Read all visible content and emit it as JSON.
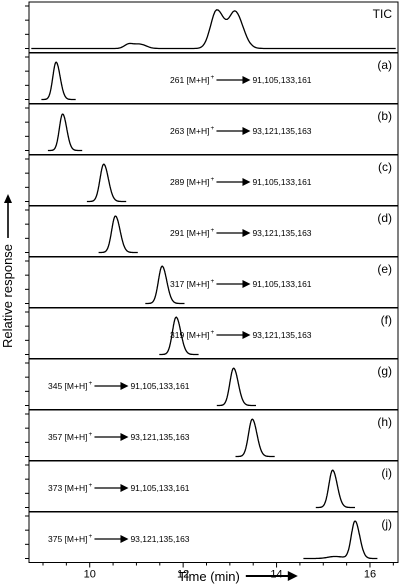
{
  "chart_data": {
    "type": "line",
    "xlabel": "Time (min)",
    "ylabel": "Relative response",
    "xlim": [
      8.7,
      16.6
    ],
    "xticks": [
      10,
      12,
      14,
      16
    ],
    "tick_labels": [
      "10",
      "12",
      "14",
      "16"
    ],
    "panels": [
      {
        "tag": "TIC",
        "transition": null,
        "peaks": [
          {
            "t": 10.85,
            "w": 0.1,
            "h": 0.12
          },
          {
            "t": 11.1,
            "w": 0.1,
            "h": 0.09
          },
          {
            "t": 12.72,
            "w": 0.13,
            "h": 0.95
          },
          {
            "t": 13.12,
            "w": 0.13,
            "h": 0.88
          }
        ]
      },
      {
        "tag": "(a)",
        "transition": {
          "precursor": "261",
          "ion": "[M+H]",
          "charge": "+",
          "products": "91,105,133,161"
        },
        "peaks": [
          {
            "t": 9.28,
            "w": 0.07,
            "h": 0.92
          }
        ]
      },
      {
        "tag": "(b)",
        "transition": {
          "precursor": "263",
          "ion": "[M+H]",
          "charge": "+",
          "products": "93,121,135,163"
        },
        "peaks": [
          {
            "t": 9.42,
            "w": 0.07,
            "h": 0.9
          }
        ]
      },
      {
        "tag": "(c)",
        "transition": {
          "precursor": "289",
          "ion": "[M+H]",
          "charge": "+",
          "products": "91,105,133,161"
        },
        "peaks": [
          {
            "t": 10.3,
            "w": 0.08,
            "h": 0.92
          }
        ]
      },
      {
        "tag": "(d)",
        "transition": {
          "precursor": "291",
          "ion": "[M+H]",
          "charge": "+",
          "products": "93,121,135,163"
        },
        "peaks": [
          {
            "t": 10.55,
            "w": 0.08,
            "h": 0.9
          }
        ]
      },
      {
        "tag": "(e)",
        "transition": {
          "precursor": "317",
          "ion": "[M+H]",
          "charge": "+",
          "products": "91,105,133,161"
        },
        "peaks": [
          {
            "t": 11.55,
            "w": 0.08,
            "h": 0.92
          }
        ]
      },
      {
        "tag": "(f)",
        "transition": {
          "precursor": "319",
          "ion": "[M+H]",
          "charge": "+",
          "products": "93,121,135,163"
        },
        "peaks": [
          {
            "t": 11.85,
            "w": 0.08,
            "h": 0.92
          }
        ]
      },
      {
        "tag": "(g)",
        "transition": {
          "precursor": "345",
          "ion": "[M+H]",
          "charge": "+",
          "products": "91,105,133,161"
        },
        "peaks": [
          {
            "t": 13.08,
            "w": 0.08,
            "h": 0.92
          }
        ]
      },
      {
        "tag": "(h)",
        "transition": {
          "precursor": "357",
          "ion": "[M+H]",
          "charge": "+",
          "products": "93,121,135,163"
        },
        "peaks": [
          {
            "t": 13.48,
            "w": 0.08,
            "h": 0.92
          }
        ]
      },
      {
        "tag": "(i)",
        "transition": {
          "precursor": "373",
          "ion": "[M+H]",
          "charge": "+",
          "products": "91,105,133,161"
        },
        "peaks": [
          {
            "t": 15.2,
            "w": 0.08,
            "h": 0.92
          }
        ]
      },
      {
        "tag": "(j)",
        "transition": {
          "precursor": "375",
          "ion": "[M+H]",
          "charge": "+",
          "products": "93,121,135,163"
        },
        "peaks": [
          {
            "t": 15.68,
            "w": 0.08,
            "h": 0.92
          },
          {
            "t": 15.25,
            "w": 0.15,
            "h": 0.05
          }
        ]
      }
    ]
  }
}
